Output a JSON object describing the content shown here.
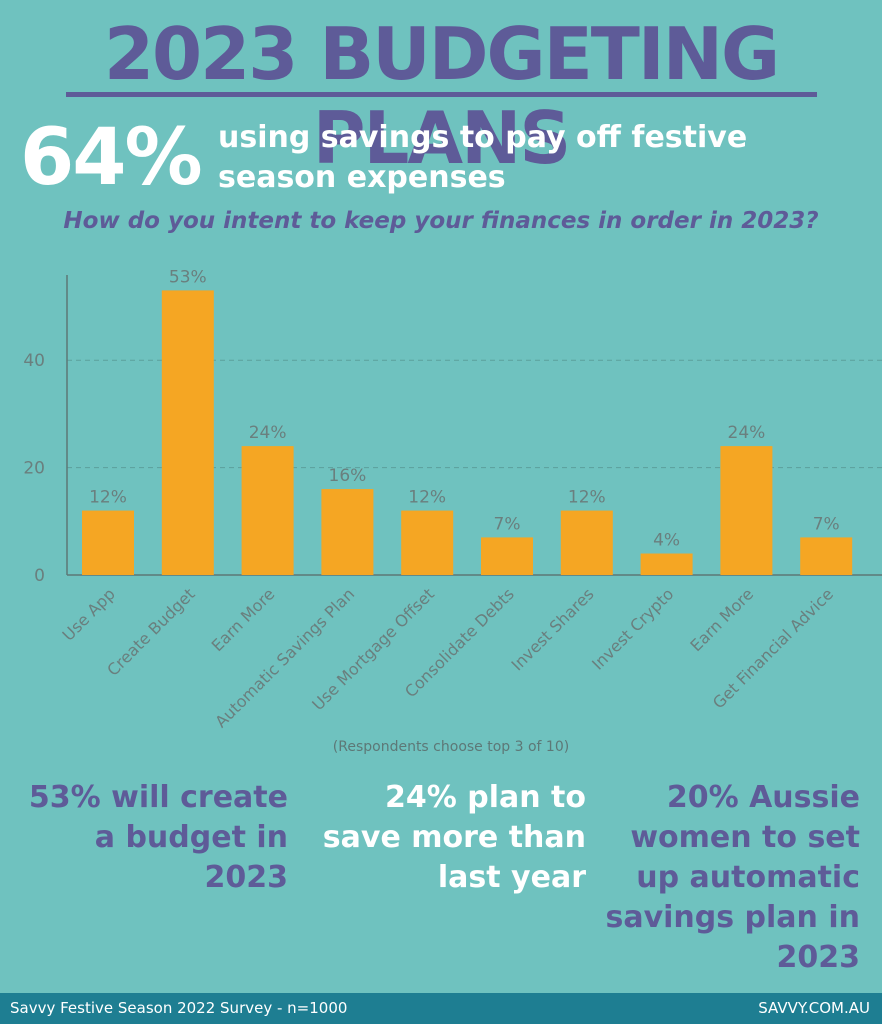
{
  "header": {
    "title": "2023 BUDGETING PLANS",
    "big_percent": "64%",
    "headline": "using savings to pay off festive season expenses"
  },
  "chart_data": {
    "type": "bar",
    "title": "How do you intent to keep your finances in order in 2023?",
    "categories": [
      "Use App",
      "Create Budget",
      "Earn More",
      "Automatic Savings Plan",
      "Use Mortgage Offset",
      "Consolidate Debts",
      "Invest Shares",
      "Invest Crypto",
      "Earn More",
      "Get Financial Advice"
    ],
    "values": [
      12,
      53,
      24,
      16,
      12,
      7,
      12,
      4,
      24,
      7
    ],
    "data_labels": [
      "12%",
      "53%",
      "24%",
      "16%",
      "12%",
      "7%",
      "12%",
      "4%",
      "24%",
      "7%"
    ],
    "y_ticks": [
      0,
      20,
      40
    ],
    "ylim": [
      0,
      56
    ],
    "grid": "horizontal dashed",
    "bar_color": "#f5a623",
    "note": "(Respondents choose top 3 of 10)"
  },
  "stats": [
    "53% will create a budget in 2023",
    "24% plan to save more than last year",
    "20% Aussie women to set up automatic savings plan in 2023"
  ],
  "footer": {
    "left": "Savvy Festive Season 2022 Survey - n=1000",
    "right": "SAVVY.COM.AU"
  },
  "colors": {
    "background": "#6fc2bf",
    "accent_purple": "#5e5b98",
    "bar": "#f5a623",
    "footer": "#1e7e92"
  }
}
